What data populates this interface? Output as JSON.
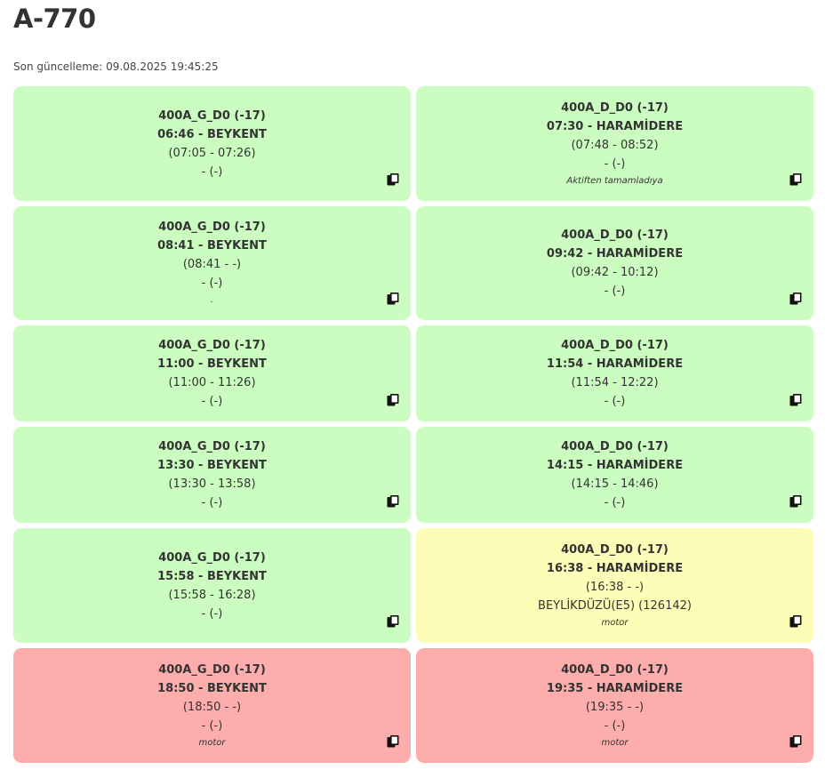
{
  "page": {
    "title": "A-770",
    "last_update": "Son güncelleme: 09.08.2025 19:45:25"
  },
  "trips": [
    {
      "status": "green",
      "route": "400A_G_D0 (-17)",
      "departure": "06:46 - BEYKENT",
      "actual": "(07:05 - 07:26)",
      "vehicle": "- (-)",
      "note": ""
    },
    {
      "status": "green",
      "route": "400A_D_D0 (-17)",
      "departure": "07:30 - HARAMİDERE",
      "actual": "(07:48 - 08:52)",
      "vehicle": "- (-)",
      "note": "Aktiften tamamladıya"
    },
    {
      "status": "green",
      "route": "400A_G_D0 (-17)",
      "departure": "08:41 - BEYKENT",
      "actual": "(08:41 - -)",
      "vehicle": "- (-)",
      "note": "."
    },
    {
      "status": "green",
      "route": "400A_D_D0 (-17)",
      "departure": "09:42 - HARAMİDERE",
      "actual": "(09:42 - 10:12)",
      "vehicle": "- (-)",
      "note": ""
    },
    {
      "status": "green",
      "route": "400A_G_D0 (-17)",
      "departure": "11:00 - BEYKENT",
      "actual": "(11:00 - 11:26)",
      "vehicle": "- (-)",
      "note": ""
    },
    {
      "status": "green",
      "route": "400A_D_D0 (-17)",
      "departure": "11:54 - HARAMİDERE",
      "actual": "(11:54 - 12:22)",
      "vehicle": "- (-)",
      "note": ""
    },
    {
      "status": "green",
      "route": "400A_G_D0 (-17)",
      "departure": "13:30 - BEYKENT",
      "actual": "(13:30 - 13:58)",
      "vehicle": "- (-)",
      "note": ""
    },
    {
      "status": "green",
      "route": "400A_D_D0 (-17)",
      "departure": "14:15 - HARAMİDERE",
      "actual": "(14:15 - 14:46)",
      "vehicle": "- (-)",
      "note": ""
    },
    {
      "status": "green",
      "route": "400A_G_D0 (-17)",
      "departure": "15:58 - BEYKENT",
      "actual": "(15:58 - 16:28)",
      "vehicle": "- (-)",
      "note": ""
    },
    {
      "status": "yellow",
      "route": "400A_D_D0 (-17)",
      "departure": "16:38 - HARAMİDERE",
      "actual": "(16:38 - -)",
      "vehicle": "BEYLİKDÜZÜ(E5) (126142)",
      "note": "motor"
    },
    {
      "status": "red",
      "route": "400A_G_D0 (-17)",
      "departure": "18:50 - BEYKENT",
      "actual": "(18:50 - -)",
      "vehicle": "- (-)",
      "note": "motor"
    },
    {
      "status": "red",
      "route": "400A_D_D0 (-17)",
      "departure": "19:35 - HARAMİDERE",
      "actual": "(19:35 - -)",
      "vehicle": "- (-)",
      "note": "motor"
    }
  ],
  "colors": {
    "green": "#cbfdc0",
    "yellow": "#fdfdb8",
    "red": "#fdadac"
  },
  "icons": {
    "copy": "copy-icon"
  }
}
